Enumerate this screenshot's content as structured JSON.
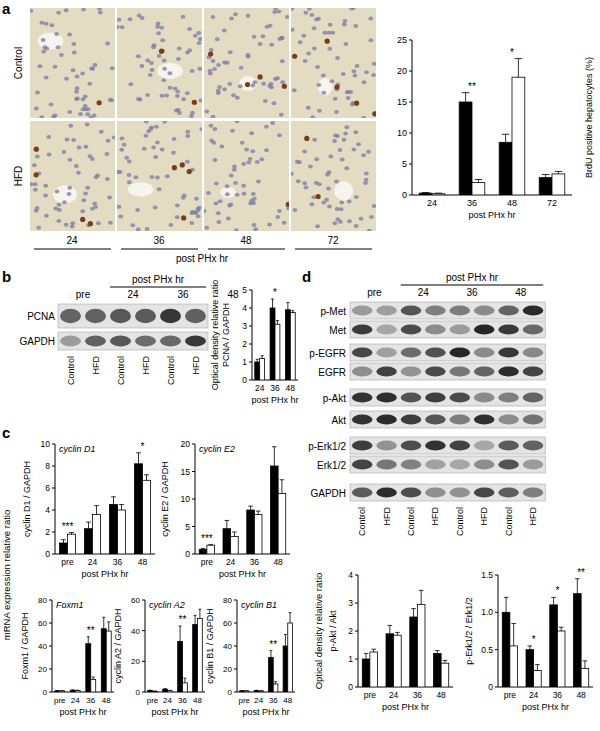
{
  "chart_data": [
    {
      "type": "bar",
      "y_label": [
        "BrdU positive hepatocytes (%)"
      ],
      "x_label": "post PHx hr",
      "categories": [
        "24",
        "36",
        "48",
        "72"
      ],
      "ylim": [
        0,
        25
      ],
      "yticks": [
        0,
        5,
        10,
        15,
        20,
        25
      ],
      "series": [
        {
          "color": "#000000",
          "values": [
            0.3,
            15,
            8.5,
            2.8
          ],
          "errors": [
            0.1,
            1.5,
            1.3,
            0.5
          ]
        },
        {
          "color": "#ffffff",
          "values": [
            0.2,
            2,
            19,
            3.4
          ],
          "errors": [
            0.1,
            0.5,
            3,
            0.4
          ]
        }
      ],
      "annotations": [
        {
          "category": "36",
          "text": "**"
        },
        {
          "category": "48",
          "text": "*"
        }
      ]
    },
    {
      "type": "bar",
      "y_label": [
        "Optical density relative ratio",
        "PCNA / GAPDH"
      ],
      "x_label": "post PHx hr",
      "categories": [
        "24",
        "36",
        "48"
      ],
      "ylim": [
        0,
        5
      ],
      "yticks": [
        0,
        1,
        2,
        3,
        4,
        5
      ],
      "series": [
        {
          "color": "#000000",
          "values": [
            1.0,
            4.0,
            3.9
          ],
          "errors": [
            0.15,
            0.5,
            0.4
          ]
        },
        {
          "color": "#ffffff",
          "values": [
            1.2,
            3.1,
            3.75
          ],
          "errors": [
            0.15,
            0.2,
            0.1
          ]
        }
      ],
      "annotations": [
        {
          "category": "36",
          "text": "*"
        }
      ]
    },
    {
      "type": "bar",
      "title": "cyclin D1",
      "y_label": [
        "cyclin D1 / GAPDH"
      ],
      "x_label": "post PHx hr",
      "categories": [
        "pre",
        "24",
        "36",
        "48"
      ],
      "ylim": [
        0,
        10
      ],
      "yticks": [
        0,
        2,
        4,
        6,
        8,
        10
      ],
      "series": [
        {
          "color": "#000000",
          "values": [
            1.0,
            2.3,
            4.5,
            8.2
          ],
          "errors": [
            0.3,
            0.6,
            0.7,
            1.0
          ]
        },
        {
          "color": "#ffffff",
          "values": [
            1.8,
            3.6,
            4.0,
            6.7
          ],
          "errors": [
            0.15,
            0.8,
            0.5,
            0.5
          ]
        }
      ],
      "annotations": [
        {
          "category": "pre",
          "text": "***"
        },
        {
          "category": "48",
          "text": "*"
        }
      ]
    },
    {
      "type": "bar",
      "title": "cyclin E2",
      "y_label": [
        "cyclin E2 / GAPDH"
      ],
      "x_label": "post PHx hr",
      "categories": [
        "pre",
        "24",
        "36",
        "48"
      ],
      "ylim": [
        0,
        20
      ],
      "yticks": [
        0,
        5,
        10,
        15,
        20
      ],
      "series": [
        {
          "color": "#000000",
          "values": [
            0.8,
            4.6,
            8.0,
            16.0
          ],
          "errors": [
            0.2,
            1.5,
            0.7,
            3.5
          ]
        },
        {
          "color": "#ffffff",
          "values": [
            1.6,
            3.2,
            7.2,
            11.0
          ],
          "errors": [
            0.1,
            0.8,
            0.6,
            2.5
          ]
        }
      ],
      "annotations": [
        {
          "category": "pre",
          "text": "***"
        }
      ]
    },
    {
      "type": "bar",
      "title": "Foxm1",
      "y_label": [
        "Foxm1 / GAPDH"
      ],
      "x_label": "post PHx hr",
      "categories": [
        "pre",
        "24",
        "36",
        "48"
      ],
      "ylim": [
        0,
        80
      ],
      "yticks": [
        0,
        20,
        40,
        60,
        80
      ],
      "series": [
        {
          "color": "#000000",
          "values": [
            1.0,
            1.5,
            42,
            55
          ],
          "errors": [
            0.3,
            0.4,
            6,
            10
          ]
        },
        {
          "color": "#ffffff",
          "values": [
            1.0,
            1.2,
            11,
            53
          ],
          "errors": [
            0.2,
            0.3,
            2,
            8
          ]
        }
      ],
      "annotations": [
        {
          "category": "36",
          "text": "**"
        }
      ]
    },
    {
      "type": "bar",
      "title": "cyclin A2",
      "y_label": [
        "cyclin A2 / GAPDH"
      ],
      "x_label": "post PHx hr",
      "categories": [
        "pre",
        "24",
        "36",
        "48"
      ],
      "ylim": [
        0,
        60
      ],
      "yticks": [
        0,
        20,
        40,
        60
      ],
      "series": [
        {
          "color": "#000000",
          "values": [
            1.0,
            1.8,
            33,
            44
          ],
          "errors": [
            0.2,
            0.5,
            10,
            6
          ]
        },
        {
          "color": "#ffffff",
          "values": [
            0.5,
            0.8,
            6,
            48
          ],
          "errors": [
            0.1,
            0.3,
            3,
            6
          ]
        }
      ],
      "annotations": [
        {
          "category": "36",
          "text": "**"
        }
      ]
    },
    {
      "type": "bar",
      "title": "cyclin B1",
      "y_label": [
        "cyclin B1 / GAPDH"
      ],
      "x_label": "post PHx hr",
      "categories": [
        "pre",
        "24",
        "36",
        "48"
      ],
      "ylim": [
        0,
        80
      ],
      "yticks": [
        0,
        20,
        40,
        60,
        80
      ],
      "series": [
        {
          "color": "#000000",
          "values": [
            1.0,
            1.2,
            30,
            40
          ],
          "errors": [
            0.2,
            0.3,
            6,
            10
          ]
        },
        {
          "color": "#ffffff",
          "values": [
            1.0,
            0.9,
            7,
            60
          ],
          "errors": [
            0.1,
            0.2,
            2,
            9
          ]
        }
      ],
      "annotations": [
        {
          "category": "36",
          "text": "**"
        }
      ]
    },
    {
      "type": "bar",
      "y_label": [
        "p-Akt / Akt"
      ],
      "x_label": "post PHx hr",
      "categories": [
        "pre",
        "24",
        "36",
        "48"
      ],
      "ylim": [
        0,
        4
      ],
      "yticks": [
        0,
        1,
        2,
        3,
        4
      ],
      "series": [
        {
          "color": "#000000",
          "values": [
            1.0,
            1.9,
            2.5,
            1.2
          ],
          "errors": [
            0.2,
            0.3,
            0.3,
            0.1
          ]
        },
        {
          "color": "#ffffff",
          "values": [
            1.25,
            1.85,
            2.95,
            0.85
          ],
          "errors": [
            0.1,
            0.1,
            0.5,
            0.1
          ]
        }
      ],
      "annotations": []
    },
    {
      "type": "bar",
      "y_label": [
        "p-Erk1/2 / Erk1/2"
      ],
      "x_label": "post PHx hr",
      "categories": [
        "pre",
        "24",
        "36",
        "48"
      ],
      "ylim": [
        0,
        1.5
      ],
      "yticks": [
        0,
        0.5,
        {
          "value": 1,
          "label": "1.0"
        },
        1.5
      ],
      "series": [
        {
          "color": "#000000",
          "values": [
            1.0,
            0.5,
            1.1,
            1.25
          ],
          "errors": [
            0.2,
            0.05,
            0.1,
            0.2
          ]
        },
        {
          "color": "#ffffff",
          "values": [
            0.55,
            0.22,
            0.75,
            0.25
          ],
          "errors": [
            0.3,
            0.08,
            0.05,
            0.1
          ]
        }
      ],
      "annotations": [
        {
          "category": "24",
          "text": "*"
        },
        {
          "category": "36",
          "text": "*"
        },
        {
          "category": "48",
          "text": "**"
        }
      ]
    }
  ],
  "figure": {
    "panel_labels": [
      "a",
      "b",
      "c",
      "d"
    ],
    "micrographs": {
      "rows": [
        "Control",
        "HFD"
      ],
      "columns": [
        "24",
        "36",
        "48",
        "72"
      ],
      "x_label": "post PHx hr"
    },
    "pcna_blot": {
      "pre": "pre",
      "post": "post PHx hr",
      "timepoints": [
        "24",
        "36",
        "48"
      ],
      "rows": [
        "PCNA",
        "GAPDH"
      ],
      "lanes": [
        "Control",
        "HFD",
        "Control",
        "HFD",
        "Control",
        "HFD"
      ]
    },
    "c_y_label": "mRNA expression relative ratio",
    "signal_blot": {
      "pre": "pre",
      "post": "post PHx hr",
      "timepoints": [
        "24",
        "36",
        "48"
      ],
      "rows": [
        "p-Met",
        "Met",
        "p-EGFR",
        "EGFR",
        "p-Akt",
        "Akt",
        "p-Erk1/2",
        "Erk1/2",
        "GAPDH"
      ],
      "lanes": [
        "Control",
        "HFD",
        "Control",
        "HFD",
        "Control",
        "HFD",
        "Control",
        "HFD"
      ]
    },
    "d_y_label": "Optical density relative ratio"
  }
}
